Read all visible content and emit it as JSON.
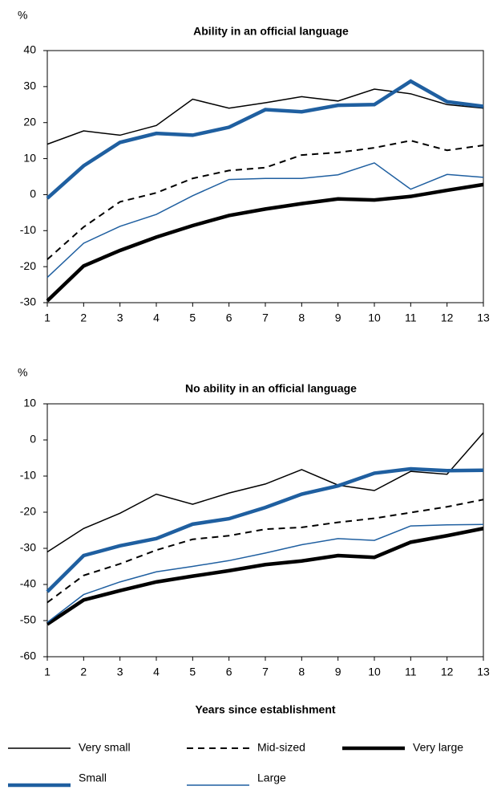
{
  "chart_data": [
    {
      "type": "line",
      "title": "Ability in an official language",
      "y_unit": "%",
      "x": [
        1,
        2,
        3,
        4,
        5,
        6,
        7,
        8,
        9,
        10,
        11,
        12,
        13
      ],
      "xlim": [
        1,
        13
      ],
      "xticks": [
        1,
        2,
        3,
        4,
        5,
        6,
        7,
        8,
        9,
        10,
        11,
        12,
        13
      ],
      "ylim": [
        -30,
        40
      ],
      "yticks": [
        -30,
        -20,
        -10,
        0,
        10,
        20,
        30,
        40
      ],
      "series": [
        {
          "name": "Very small",
          "color": "#000000",
          "line_width": 1.5,
          "dash": false,
          "values": [
            14,
            17.7,
            16.5,
            19.2,
            26.5,
            24,
            25.5,
            27.2,
            26,
            29.3,
            28,
            25,
            24
          ]
        },
        {
          "name": "Mid-sized",
          "color": "#000000",
          "line_width": 2,
          "dash": true,
          "values": [
            -18,
            -9,
            -2,
            0.5,
            4.5,
            6.7,
            7.5,
            11,
            11.7,
            13,
            15,
            12.3,
            13.7
          ]
        },
        {
          "name": "Very large",
          "color": "#000000",
          "line_width": 4.5,
          "dash": false,
          "values": [
            -29.5,
            -19.8,
            -15.5,
            -11.8,
            -8.6,
            -5.8,
            -4,
            -2.5,
            -1.2,
            -1.5,
            -0.5,
            1.2,
            2.8
          ]
        },
        {
          "name": "Small",
          "color": "#1f5fa0",
          "line_width": 4.5,
          "dash": false,
          "values": [
            -1,
            8,
            14.5,
            17,
            16.5,
            18.7,
            23.6,
            23,
            24.8,
            25,
            31.5,
            25.8,
            24.5
          ]
        },
        {
          "name": "Large",
          "color": "#1f5fa0",
          "line_width": 1.5,
          "dash": false,
          "values": [
            -23,
            -13.5,
            -8.8,
            -5.5,
            -0.3,
            4.2,
            4.5,
            4.5,
            5.5,
            8.8,
            1.5,
            5.6,
            4.8
          ]
        }
      ]
    },
    {
      "type": "line",
      "title": "No ability in an official language",
      "y_unit": "%",
      "x_label": "Years since establishment",
      "x": [
        1,
        2,
        3,
        4,
        5,
        6,
        7,
        8,
        9,
        10,
        11,
        12,
        13
      ],
      "xlim": [
        1,
        13
      ],
      "xticks": [
        1,
        2,
        3,
        4,
        5,
        6,
        7,
        8,
        9,
        10,
        11,
        12,
        13
      ],
      "ylim": [
        -60,
        10
      ],
      "yticks": [
        -60,
        -50,
        -40,
        -30,
        -20,
        -10,
        0,
        10
      ],
      "series": [
        {
          "name": "Very small",
          "color": "#000000",
          "line_width": 1.5,
          "dash": false,
          "values": [
            -31,
            -24.5,
            -20.3,
            -15,
            -17.8,
            -14.7,
            -12.2,
            -8.2,
            -12.5,
            -14,
            -8.7,
            -9.5,
            2
          ]
        },
        {
          "name": "Mid-sized",
          "color": "#000000",
          "line_width": 2,
          "dash": true,
          "values": [
            -45,
            -37.5,
            -34.3,
            -30.5,
            -27.5,
            -26.5,
            -24.7,
            -24.2,
            -22.8,
            -21.7,
            -20.1,
            -18.5,
            -16.5
          ]
        },
        {
          "name": "Very large",
          "color": "#000000",
          "line_width": 4.5,
          "dash": false,
          "values": [
            -51,
            -44.3,
            -41.7,
            -39.3,
            -37.7,
            -36.2,
            -34.5,
            -33.5,
            -32,
            -32.5,
            -28.3,
            -26.5,
            -24.5
          ]
        },
        {
          "name": "Small",
          "color": "#1f5fa0",
          "line_width": 4.5,
          "dash": false,
          "values": [
            -42,
            -32,
            -29.3,
            -27.3,
            -23.3,
            -21.8,
            -18.7,
            -15,
            -12.7,
            -9.2,
            -8,
            -8.5,
            -8.4
          ]
        },
        {
          "name": "Large",
          "color": "#1f5fa0",
          "line_width": 1.5,
          "dash": false,
          "values": [
            -50.5,
            -42.8,
            -39.3,
            -36.5,
            -35,
            -33.4,
            -31.3,
            -29,
            -27.3,
            -27.8,
            -23.8,
            -23.5,
            -23.4
          ]
        }
      ]
    }
  ]
}
